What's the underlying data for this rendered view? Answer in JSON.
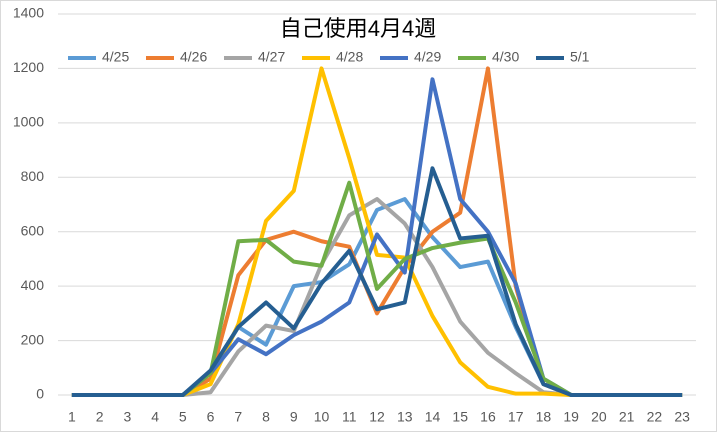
{
  "chart_data": {
    "type": "line",
    "title": "自己使用4月4週",
    "x": [
      "1",
      "2",
      "3",
      "4",
      "5",
      "6",
      "7",
      "8",
      "9",
      "10",
      "11",
      "12",
      "13",
      "14",
      "15",
      "16",
      "17",
      "18",
      "19",
      "20",
      "21",
      "22",
      "23"
    ],
    "ylim": [
      0,
      1400
    ],
    "yticks": [
      0,
      200,
      400,
      600,
      800,
      1000,
      1200,
      1400
    ],
    "grid": true,
    "series": [
      {
        "name": "4/25",
        "color": "#5b9bd5",
        "values": [
          0,
          0,
          0,
          0,
          0,
          80,
          250,
          185,
          400,
          415,
          480,
          680,
          720,
          580,
          470,
          490,
          250,
          40,
          0,
          0,
          0,
          0,
          0
        ]
      },
      {
        "name": "4/26",
        "color": "#ed7d31",
        "values": [
          0,
          0,
          0,
          0,
          0,
          60,
          440,
          570,
          600,
          565,
          545,
          300,
          470,
          600,
          670,
          1200,
          400,
          40,
          0,
          0,
          0,
          0,
          0
        ]
      },
      {
        "name": "4/27",
        "color": "#a5a5a5",
        "values": [
          0,
          0,
          0,
          0,
          0,
          10,
          160,
          255,
          235,
          480,
          660,
          720,
          630,
          470,
          270,
          155,
          80,
          10,
          0,
          0,
          0,
          0,
          0
        ]
      },
      {
        "name": "4/28",
        "color": "#ffc000",
        "values": [
          0,
          0,
          0,
          0,
          0,
          40,
          260,
          640,
          750,
          1200,
          870,
          515,
          505,
          290,
          120,
          30,
          5,
          5,
          0,
          0,
          0,
          0,
          0
        ]
      },
      {
        "name": "4/29",
        "color": "#4472c4",
        "values": [
          0,
          0,
          0,
          0,
          0,
          80,
          205,
          150,
          220,
          270,
          340,
          590,
          450,
          1160,
          720,
          600,
          410,
          60,
          0,
          0,
          0,
          0,
          0
        ]
      },
      {
        "name": "4/30",
        "color": "#70ad47",
        "values": [
          0,
          0,
          0,
          0,
          0,
          80,
          565,
          570,
          490,
          475,
          780,
          390,
          500,
          540,
          560,
          575,
          340,
          60,
          0,
          0,
          0,
          0,
          0
        ]
      },
      {
        "name": "5/1",
        "color": "#255e91",
        "values": [
          0,
          0,
          0,
          0,
          0,
          90,
          250,
          340,
          245,
          410,
          530,
          315,
          340,
          833,
          575,
          585,
          260,
          40,
          0,
          0,
          0,
          0,
          0
        ]
      }
    ]
  }
}
